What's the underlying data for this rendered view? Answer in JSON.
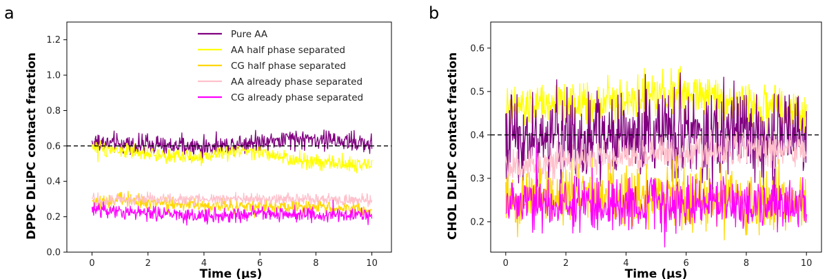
{
  "chart_data": [
    {
      "panel_letter": "a",
      "type": "line",
      "xlabel": "Time (μs)",
      "ylabel": "DPPC DLiPC contact fraction",
      "xlim": [
        -0.9,
        10.7
      ],
      "ylim": [
        0.0,
        1.3
      ],
      "xticks": [
        0,
        2,
        4,
        6,
        8,
        10
      ],
      "yticks": [
        0.0,
        0.2,
        0.4,
        0.6,
        0.8,
        1.0,
        1.2
      ],
      "ytick_labels": [
        "0.0",
        "0.2",
        "0.4",
        "0.6",
        "0.8",
        "1.0",
        "1.2"
      ],
      "reference_line": 0.6,
      "grid": false,
      "legend_position": "top-center",
      "series": [
        {
          "name": "Pure AA",
          "color": "#800080",
          "noise": 0.035,
          "keys": [
            [
              0,
              0.62
            ],
            [
              2,
              0.6
            ],
            [
              4,
              0.59
            ],
            [
              5,
              0.61
            ],
            [
              6,
              0.63
            ],
            [
              8,
              0.64
            ],
            [
              10,
              0.61
            ]
          ]
        },
        {
          "name": "AA half phase separated",
          "color": "#ffff00",
          "noise": 0.025,
          "keys": [
            [
              0,
              0.6
            ],
            [
              2,
              0.55
            ],
            [
              4,
              0.54
            ],
            [
              5.5,
              0.58
            ],
            [
              7,
              0.52
            ],
            [
              8.5,
              0.5
            ],
            [
              10,
              0.49
            ]
          ]
        },
        {
          "name": "CG half phase separated",
          "color": "#ffd700",
          "noise": 0.025,
          "keys": [
            [
              0,
              0.28
            ],
            [
              1,
              0.3
            ],
            [
              2,
              0.28
            ],
            [
              4,
              0.26
            ],
            [
              6,
              0.26
            ],
            [
              8,
              0.25
            ],
            [
              10,
              0.24
            ]
          ]
        },
        {
          "name": "AA already phase separated",
          "color": "#ffc0cb",
          "noise": 0.02,
          "keys": [
            [
              0,
              0.29
            ],
            [
              2,
              0.3
            ],
            [
              4,
              0.3
            ],
            [
              6,
              0.3
            ],
            [
              8,
              0.3
            ],
            [
              10,
              0.29
            ]
          ]
        },
        {
          "name": "CG already phase separated",
          "color": "#ff00ff",
          "noise": 0.025,
          "keys": [
            [
              0,
              0.24
            ],
            [
              2,
              0.22
            ],
            [
              4,
              0.2
            ],
            [
              6,
              0.22
            ],
            [
              8,
              0.21
            ],
            [
              10,
              0.21
            ]
          ]
        }
      ]
    },
    {
      "panel_letter": "b",
      "type": "line",
      "xlabel": "Time (μs)",
      "ylabel": "CHOL DLiPC contact fraction",
      "xlim": [
        -0.5,
        10.5
      ],
      "ylim": [
        0.13,
        0.66
      ],
      "xticks": [
        0,
        2,
        4,
        6,
        8,
        10
      ],
      "yticks": [
        0.2,
        0.3,
        0.4,
        0.5,
        0.6
      ],
      "ytick_labels": [
        "0.2",
        "0.3",
        "0.4",
        "0.5",
        "0.6"
      ],
      "reference_line": 0.4,
      "grid": false,
      "series": [
        {
          "name": "AA half phase separated",
          "color": "#ffff00",
          "noise": 0.03,
          "keys": [
            [
              0,
              0.46
            ],
            [
              2,
              0.47
            ],
            [
              4,
              0.48
            ],
            [
              6,
              0.5
            ],
            [
              8,
              0.47
            ],
            [
              10,
              0.45
            ]
          ]
        },
        {
          "name": "Pure AA",
          "color": "#800080",
          "noise": 0.065,
          "keys": [
            [
              0,
              0.4
            ],
            [
              2,
              0.39
            ],
            [
              4,
              0.4
            ],
            [
              6,
              0.41
            ],
            [
              8,
              0.4
            ],
            [
              10,
              0.39
            ]
          ]
        },
        {
          "name": "AA already phase separated",
          "color": "#ffc0cb",
          "noise": 0.025,
          "keys": [
            [
              0,
              0.33
            ],
            [
              2,
              0.34
            ],
            [
              4,
              0.35
            ],
            [
              6,
              0.36
            ],
            [
              8,
              0.37
            ],
            [
              10,
              0.36
            ]
          ]
        },
        {
          "name": "CG half phase separated",
          "color": "#ffd700",
          "noise": 0.045,
          "keys": [
            [
              0,
              0.25
            ],
            [
              2,
              0.26
            ],
            [
              4,
              0.26
            ],
            [
              6,
              0.26
            ],
            [
              8,
              0.25
            ],
            [
              10,
              0.24
            ]
          ]
        },
        {
          "name": "CG already phase separated",
          "color": "#ff00ff",
          "noise": 0.035,
          "keys": [
            [
              0,
              0.24
            ],
            [
              2,
              0.24
            ],
            [
              4,
              0.24
            ],
            [
              6,
              0.24
            ],
            [
              8,
              0.24
            ],
            [
              10,
              0.24
            ]
          ]
        }
      ]
    }
  ]
}
